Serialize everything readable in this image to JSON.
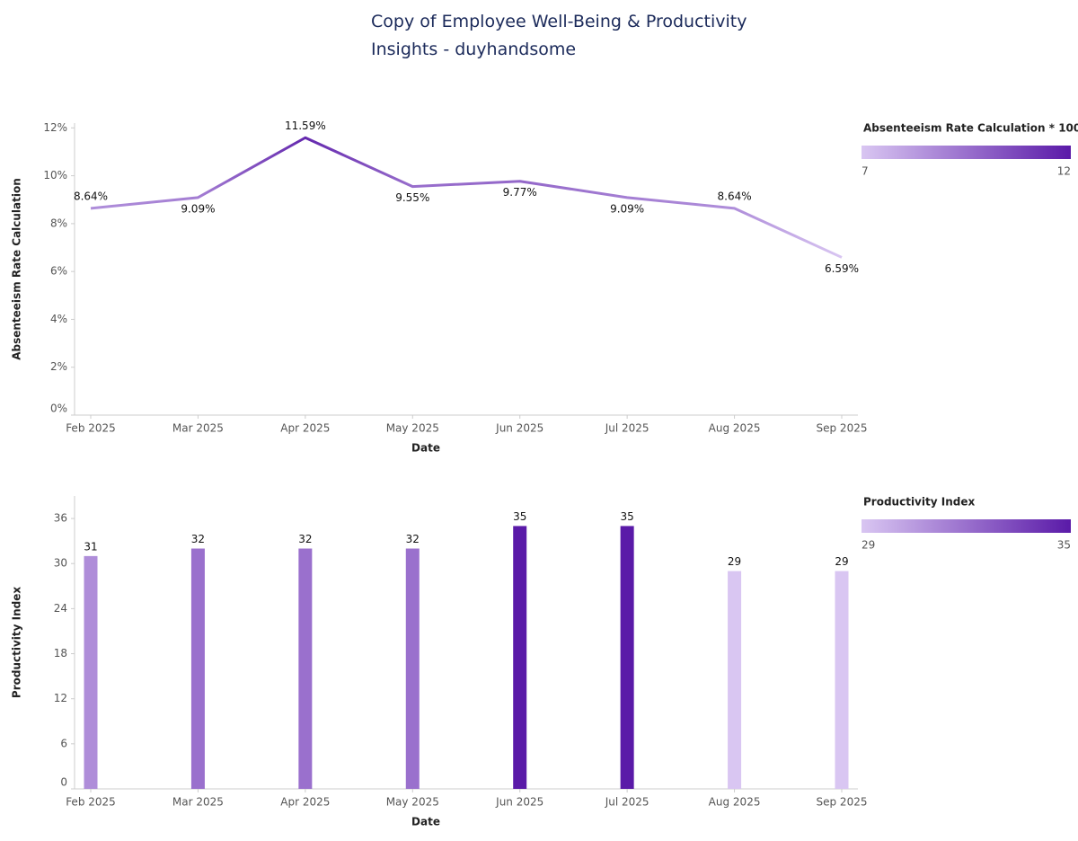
{
  "title": "Copy of Employee Well-Being & Productivity Insights - duyhandsome",
  "chart_data": [
    {
      "type": "line",
      "categories": [
        "Feb 2025",
        "Mar 2025",
        "Apr 2025",
        "May 2025",
        "Jun 2025",
        "Jul 2025",
        "Aug 2025",
        "Sep 2025"
      ],
      "values": [
        8.64,
        9.09,
        11.59,
        9.55,
        9.77,
        9.09,
        8.64,
        6.59
      ],
      "value_labels": [
        "8.64%",
        "9.09%",
        "11.59%",
        "9.55%",
        "9.77%",
        "9.09%",
        "8.64%",
        "6.59%"
      ],
      "x_label": "Date",
      "y_label": "Absenteeism Rate Calculation",
      "ylim": [
        0,
        12.2
      ],
      "yticks": [
        {
          "value": 0,
          "label": "0%"
        },
        {
          "value": 2,
          "label": "2%"
        },
        {
          "value": 4,
          "label": "4%"
        },
        {
          "value": 6,
          "label": "6%"
        },
        {
          "value": 8,
          "label": "8%"
        },
        {
          "value": 10,
          "label": "10%"
        },
        {
          "value": 12,
          "label": "12%"
        }
      ],
      "color_scale": {
        "title": "Absenteeism Rate Calculation * 100",
        "min": 7,
        "max": 12,
        "colors": [
          "#d9c6f2",
          "#5a1aa8"
        ]
      }
    },
    {
      "type": "bar",
      "categories": [
        "Feb 2025",
        "Mar 2025",
        "Apr 2025",
        "May 2025",
        "Jun 2025",
        "Jul 2025",
        "Aug 2025",
        "Sep 2025"
      ],
      "values": [
        31,
        32,
        32,
        32,
        35,
        35,
        29,
        29
      ],
      "x_label": "Date",
      "y_label": "Productivity Index",
      "ylim": [
        0,
        39
      ],
      "yticks": [
        0,
        6,
        12,
        18,
        24,
        30,
        36
      ],
      "color_scale": {
        "title": "Productivity Index",
        "min": 29,
        "max": 35,
        "colors": [
          "#d9c6f2",
          "#5a1aa8"
        ]
      }
    }
  ]
}
